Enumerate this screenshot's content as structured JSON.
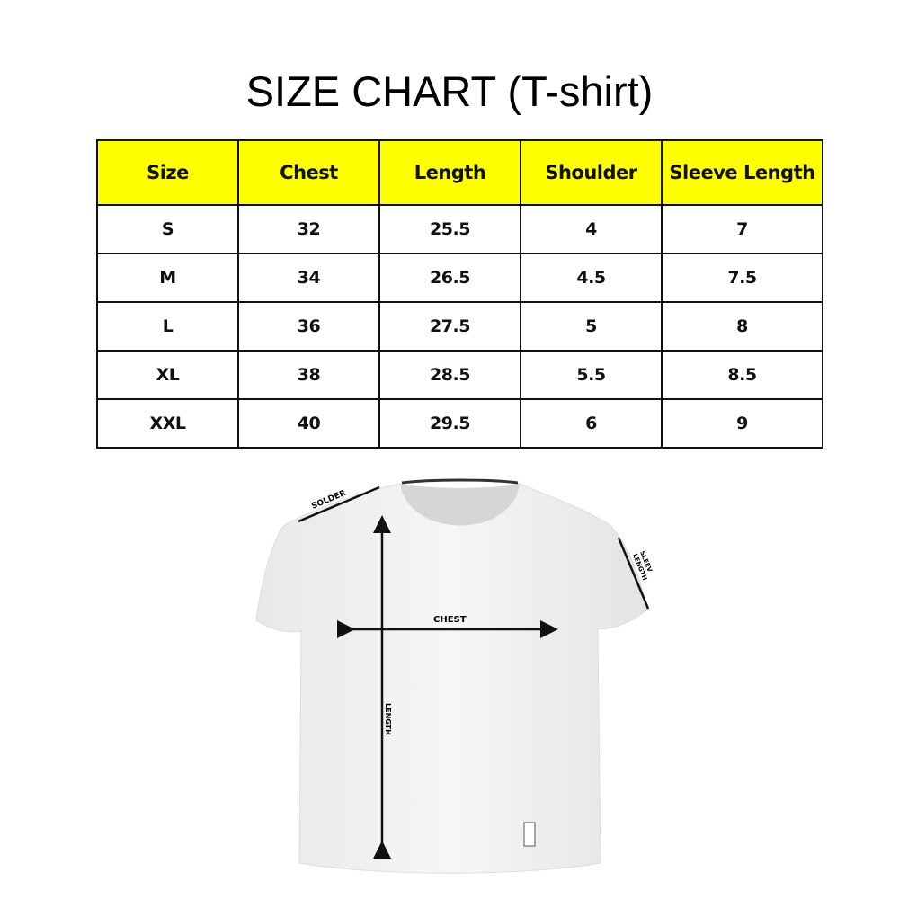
{
  "title": "SIZE CHART (T-shirt)",
  "colors": {
    "header_bg": "#ffff00"
  },
  "table": {
    "headers": [
      "Size",
      "Chest",
      "Length",
      "Shoulder",
      "Sleeve Length"
    ],
    "rows": [
      [
        "S",
        "32",
        "25.5",
        "4",
        "7"
      ],
      [
        "M",
        "34",
        "26.5",
        "4.5",
        "7.5"
      ],
      [
        "L",
        "36",
        "27.5",
        "5",
        "8"
      ],
      [
        "XL",
        "38",
        "28.5",
        "5.5",
        "8.5"
      ],
      [
        "XXL",
        "40",
        "29.5",
        "6",
        "9"
      ]
    ]
  },
  "diagram": {
    "labels": {
      "shoulder": "SOLDER",
      "sleeve_1": "SLEEV",
      "sleeve_2": "LENGTH",
      "chest": "CHEST",
      "length": "LENGTH"
    }
  }
}
